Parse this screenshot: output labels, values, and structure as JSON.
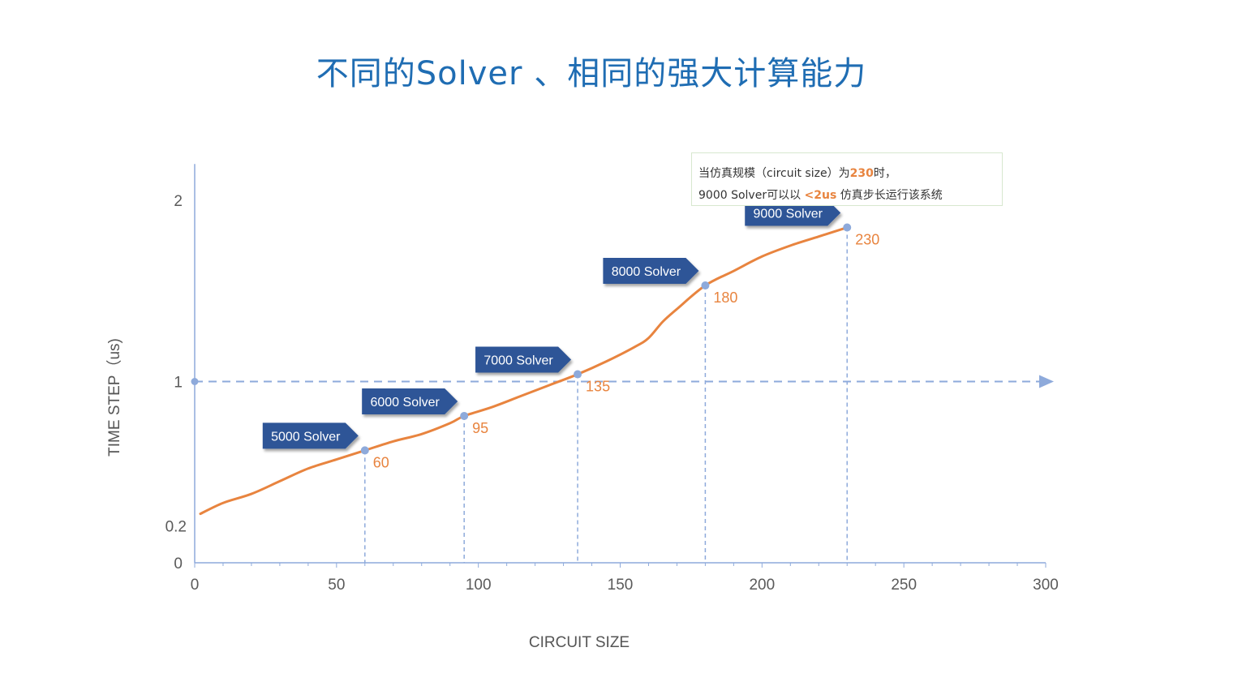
{
  "title": "不同的Solver 、相同的强大计算能力",
  "callout": {
    "line1_prefix": "当仿真规模（circuit size）为",
    "line1_highlight": "230",
    "line1_suffix": "时，",
    "line2_prefix": "9000 Solver可以以 ",
    "line2_highlight": "<2us",
    "line2_suffix": " 仿真步长运行该系统"
  },
  "colors": {
    "title": "#1f6db3",
    "curve": "#e8843f",
    "guide": "#8eaadb",
    "tag": "#2f5597",
    "axis": "#8eaadb"
  },
  "chart_data": {
    "type": "line",
    "xlabel": "CIRCUIT SIZE",
    "ylabel": "TIME STEP（us)",
    "xlim": [
      0,
      300
    ],
    "ylim": [
      0,
      2.2
    ],
    "x_ticks": [
      0,
      50,
      100,
      150,
      200,
      250,
      300
    ],
    "y_ticks": [
      0,
      0.2,
      1,
      2
    ],
    "reference_line_y": 1,
    "series": [
      {
        "x": [
          2,
          10,
          20,
          30,
          40,
          50,
          60,
          70,
          80,
          90,
          95,
          105,
          115,
          125,
          135,
          145,
          155,
          160,
          165,
          170,
          180,
          190,
          200,
          210,
          220,
          230
        ],
        "values": [
          0.27,
          0.33,
          0.38,
          0.45,
          0.52,
          0.57,
          0.62,
          0.67,
          0.71,
          0.77,
          0.81,
          0.86,
          0.92,
          0.98,
          1.04,
          1.11,
          1.19,
          1.24,
          1.33,
          1.4,
          1.53,
          1.61,
          1.69,
          1.75,
          1.8,
          1.85
        ]
      }
    ],
    "markers": [
      {
        "x": 60,
        "y": 0.62,
        "tag": "5000 Solver",
        "label": "60"
      },
      {
        "x": 95,
        "y": 0.81,
        "tag": "6000 Solver",
        "label": "95"
      },
      {
        "x": 135,
        "y": 1.04,
        "tag": "7000 Solver",
        "label": "135"
      },
      {
        "x": 180,
        "y": 1.53,
        "tag": "8000 Solver",
        "label": "180"
      },
      {
        "x": 230,
        "y": 1.85,
        "tag": "9000 Solver",
        "label": "230"
      }
    ]
  }
}
